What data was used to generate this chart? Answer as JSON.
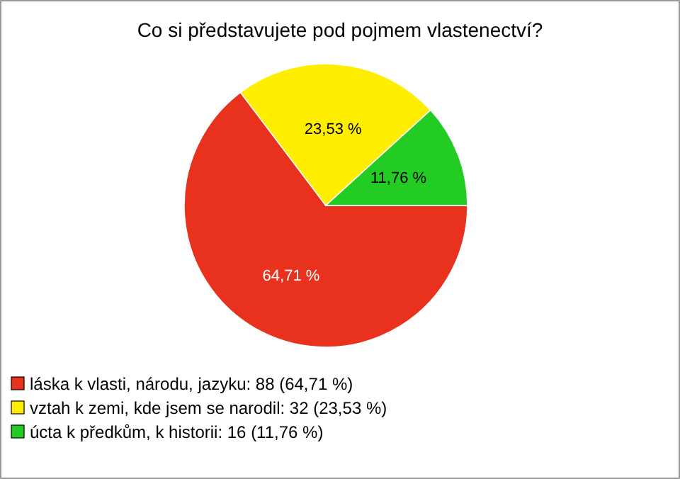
{
  "chart_data": {
    "type": "pie",
    "title": "Co si představujete pod pojmem vlastenectví?",
    "categories": [
      "láska k vlasti, národu, jazyku: 88 (64,71 %)",
      "vztah k zemi, kde jsem se narodil: 32 (23,53 %)",
      "úcta k předkům, k historii: 16 (11,76 %)"
    ],
    "values": [
      64.71,
      23.53,
      11.76
    ],
    "value_labels": [
      "64,71 %",
      "23,53 %",
      "11,76 %"
    ],
    "colors": [
      "#e8321e",
      "#ffee00",
      "#22cc22"
    ],
    "legend": "bottom left"
  }
}
